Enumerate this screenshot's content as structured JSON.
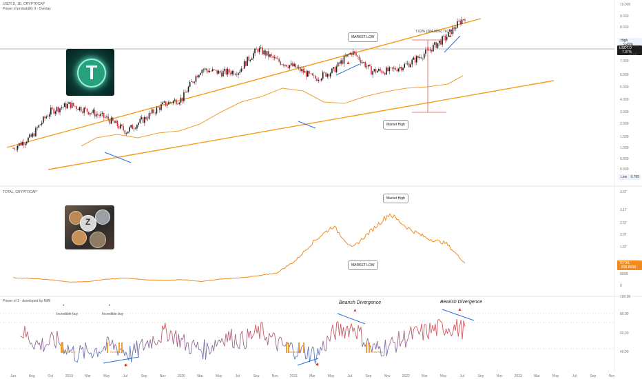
{
  "panes": {
    "main": {
      "title": "USDT.D, 1D, CRYPTOCAP",
      "subtitle": "Power of probability II - Overlay",
      "price_label": "USDT.D",
      "price_value": "7.97%",
      "price_sub": "1d 13h",
      "high_label": "High",
      "high_value": "9.49%",
      "low_label": "Low",
      "low_value": "0.765",
      "measure_label": "7.02% (284.90%) 702",
      "y_ticks": [
        "10.000",
        "9.000",
        "8.000",
        "7.000",
        "6.000",
        "5.000",
        "4.000",
        "3.000",
        "2.000",
        "1.500",
        "1.000",
        "0.800",
        "0.600"
      ]
    },
    "total": {
      "title": "TOTAL, CRYPTOCAP",
      "price_label": "TOTAL",
      "price_value": "838.869B",
      "y_ticks": [
        "3.6T",
        "3.1T",
        "2.5T",
        "2.0T",
        "1.5T",
        "1.0T",
        "800B",
        "0"
      ]
    },
    "oscillator": {
      "title": "Power of 3 - developed by MMI",
      "y_ticks": [
        "100.00",
        "80.00",
        "60.00",
        "40.00"
      ]
    }
  },
  "annotations": {
    "market_low_top": "MARKET LOW",
    "market_high_main": "Market High",
    "market_high_total": "Market High",
    "market_low_total": "MARKET LOW",
    "bearish_divergence_1": "Bearish Divergence",
    "bearish_divergence_2": "Bearish Divergence",
    "incredible_buy_1": "Incredible buy",
    "incredible_buy_2": "Incredible buy",
    "great_buy_1": "Great buy",
    "great_buy_2": "Great buy",
    "great_buy_3": "Great buy",
    "great_buy_4": "Great buy"
  },
  "x_labels": [
    "Jun",
    "Aug",
    "Oct",
    "2019",
    "Mar",
    "May",
    "Jul",
    "Sep",
    "Nov",
    "2020",
    "Mar",
    "May",
    "Jul",
    "Sep",
    "Nov",
    "2021",
    "Mar",
    "May",
    "Jul",
    "Sep",
    "Nov",
    "2022",
    "Mar",
    "May",
    "Jul",
    "Sep",
    "Nov",
    "2023",
    "Mar",
    "May",
    "Jul",
    "Sep",
    "Nov"
  ],
  "images": {
    "tether_logo": "tether-coin-image",
    "crypto_coins": "crypto-coins-image"
  },
  "colors": {
    "channel": "#f59b1a",
    "candle_up": "#1e1e1e",
    "candle_down": "#d6303b",
    "ma": "#f0a030",
    "total_line": "#f28a1e",
    "osc_high": "#e05050",
    "osc_low": "#4a7fd4",
    "divergence": "#2b6fd6"
  },
  "chart_data": [
    {
      "type": "line",
      "pane": "USDT.D",
      "x": [
        "Jun",
        "Aug",
        "Oct",
        "2019",
        "Mar",
        "May",
        "Jul",
        "Sep",
        "Nov",
        "2020",
        "Mar",
        "May",
        "Jul",
        "Sep",
        "Nov",
        "2021",
        "Mar",
        "May",
        "Jul",
        "Sep",
        "Nov",
        "2022",
        "Mar",
        "May",
        "Jul"
      ],
      "series": [
        {
          "name": "USDT.D",
          "values": [
            1.0,
            1.2,
            1.8,
            2.0,
            1.8,
            1.6,
            1.3,
            1.6,
            2.0,
            2.2,
            3.5,
            3.3,
            3.4,
            4.8,
            4.0,
            3.6,
            3.0,
            3.4,
            4.6,
            3.4,
            3.4,
            3.8,
            4.6,
            5.8,
            7.97
          ]
        }
      ],
      "ylim": [
        0.6,
        10
      ]
    },
    {
      "type": "line",
      "pane": "TOTAL",
      "x": [
        "Jun",
        "Aug",
        "Oct",
        "2019",
        "Mar",
        "May",
        "Jul",
        "Sep",
        "Nov",
        "2020",
        "Mar",
        "May",
        "Jul",
        "Sep",
        "Nov",
        "2021",
        "Mar",
        "May",
        "Jul",
        "Sep",
        "Nov",
        "2022",
        "Mar",
        "May",
        "Jul"
      ],
      "series": [
        {
          "name": "TOTAL",
          "values": [
            300,
            280,
            220,
            130,
            150,
            250,
            300,
            220,
            200,
            230,
            150,
            250,
            300,
            380,
            500,
            1000,
            1800,
            2400,
            1500,
            2200,
            2900,
            2300,
            1900,
            1700,
            900
          ]
        }
      ],
      "ylim": [
        0,
        3600
      ]
    },
    {
      "type": "line",
      "pane": "Power of 3",
      "x": [
        "Jun",
        "Aug",
        "Oct",
        "2019",
        "Mar",
        "May",
        "Jul",
        "Sep",
        "Nov",
        "2020",
        "Mar",
        "May",
        "Jul",
        "Sep",
        "Nov",
        "2021",
        "Mar",
        "May",
        "Jul",
        "Sep",
        "Nov",
        "2022",
        "Mar",
        "May",
        "Jul"
      ],
      "series": [
        {
          "name": "Power of 3",
          "values": [
            70,
            55,
            60,
            45,
            50,
            55,
            45,
            60,
            70,
            55,
            50,
            65,
            60,
            70,
            55,
            50,
            45,
            70,
            75,
            50,
            55,
            65,
            70,
            75,
            72
          ]
        }
      ],
      "ylim": [
        30,
        100
      ]
    }
  ]
}
